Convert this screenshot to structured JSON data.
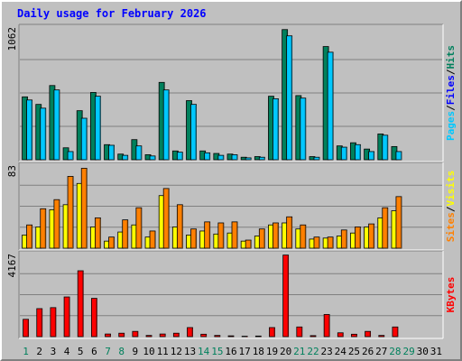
{
  "title": "Daily usage for February 2026",
  "colors": {
    "background": "#c0c0c0",
    "plot_bg": "#c0c0c0",
    "title": "#0000ff",
    "hits": "#00805c",
    "files": "#0000ff",
    "pages": "#00c8ff",
    "visits": "#ffff00",
    "sites": "#ff8000",
    "kbytes": "#ff0000",
    "weekend_day": "#00805c",
    "weekday_day": "#000000"
  },
  "chart_data": [
    {
      "type": "bar",
      "name": "hits-files-pages",
      "ymax_label": "1062",
      "ylim": [
        0,
        1062
      ],
      "legend": {
        "a": "Pages",
        "sep1": "/",
        "b": "Files",
        "sep2": "/",
        "c": "Hits"
      },
      "categories": [
        "1",
        "2",
        "3",
        "4",
        "5",
        "6",
        "7",
        "8",
        "9",
        "10",
        "11",
        "12",
        "13",
        "14",
        "15",
        "16",
        "17",
        "18",
        "19",
        "20",
        "21",
        "22",
        "23",
        "24",
        "25",
        "26",
        "27",
        "28",
        "29",
        "30",
        "31"
      ],
      "series": [
        {
          "name": "Hits",
          "values": [
            500,
            440,
            590,
            95,
            390,
            535,
            120,
            45,
            160,
            40,
            615,
            70,
            470,
            70,
            50,
            45,
            20,
            25,
            505,
            1035,
            510,
            25,
            900,
            110,
            135,
            85,
            205,
            105,
            0,
            0,
            0
          ]
        },
        {
          "name": "Files",
          "values": [
            475,
            410,
            555,
            65,
            330,
            505,
            115,
            35,
            110,
            30,
            555,
            60,
            440,
            55,
            35,
            40,
            15,
            20,
            485,
            985,
            490,
            20,
            855,
            100,
            120,
            65,
            195,
            65,
            0,
            0,
            0
          ]
        },
        {
          "name": "Pages",
          "values": [
            475,
            410,
            555,
            65,
            330,
            505,
            115,
            35,
            110,
            30,
            555,
            60,
            440,
            55,
            35,
            40,
            15,
            20,
            485,
            985,
            490,
            20,
            855,
            100,
            120,
            65,
            195,
            65,
            0,
            0,
            0
          ]
        }
      ]
    },
    {
      "type": "bar",
      "name": "visits-sites",
      "ymax_label": "83",
      "ylim": [
        0,
        83
      ],
      "legend": {
        "a": "Sites",
        "sep1": "/",
        "b": "Visits"
      },
      "categories": [
        "1",
        "2",
        "3",
        "4",
        "5",
        "6",
        "7",
        "8",
        "9",
        "10",
        "11",
        "12",
        "13",
        "14",
        "15",
        "16",
        "17",
        "18",
        "19",
        "20",
        "21",
        "22",
        "23",
        "24",
        "25",
        "26",
        "27",
        "28",
        "29",
        "30",
        "31"
      ],
      "series": [
        {
          "name": "Visits",
          "values": [
            13,
            21,
            38,
            43,
            64,
            21,
            7,
            16,
            23,
            11,
            52,
            21,
            13,
            17,
            14,
            15,
            7,
            12,
            23,
            25,
            19,
            9,
            10,
            12,
            15,
            21,
            30,
            37,
            0,
            0,
            0
          ]
        },
        {
          "name": "Sites",
          "values": [
            23,
            39,
            48,
            71,
            79,
            30,
            11,
            28,
            40,
            17,
            59,
            43,
            19,
            26,
            25,
            26,
            8,
            19,
            25,
            31,
            23,
            11,
            11,
            18,
            21,
            24,
            40,
            51,
            0,
            0,
            0
          ]
        }
      ]
    },
    {
      "type": "bar",
      "name": "kbytes",
      "ymax_label": "4167",
      "ylim": [
        0,
        4167
      ],
      "legend": {
        "a": "KBytes"
      },
      "categories": [
        "1",
        "2",
        "3",
        "4",
        "5",
        "6",
        "7",
        "8",
        "9",
        "10",
        "11",
        "12",
        "13",
        "14",
        "15",
        "16",
        "17",
        "18",
        "19",
        "20",
        "21",
        "22",
        "23",
        "24",
        "25",
        "26",
        "27",
        "28",
        "29",
        "30",
        "31"
      ],
      "series": [
        {
          "name": "KBytes",
          "values": [
            860,
            1390,
            1440,
            1970,
            3270,
            1900,
            130,
            170,
            260,
            60,
            130,
            170,
            450,
            120,
            60,
            40,
            20,
            30,
            450,
            4050,
            480,
            50,
            1100,
            190,
            120,
            260,
            60,
            480,
            0,
            0,
            0
          ]
        }
      ]
    }
  ],
  "days": [
    "1",
    "2",
    "3",
    "4",
    "5",
    "6",
    "7",
    "8",
    "9",
    "10",
    "11",
    "12",
    "13",
    "14",
    "15",
    "16",
    "17",
    "18",
    "19",
    "20",
    "21",
    "22",
    "23",
    "24",
    "25",
    "26",
    "27",
    "28",
    "29",
    "30",
    "31"
  ],
  "weekend_days": [
    "1",
    "7",
    "8",
    "14",
    "15",
    "21",
    "22",
    "28",
    "29"
  ]
}
